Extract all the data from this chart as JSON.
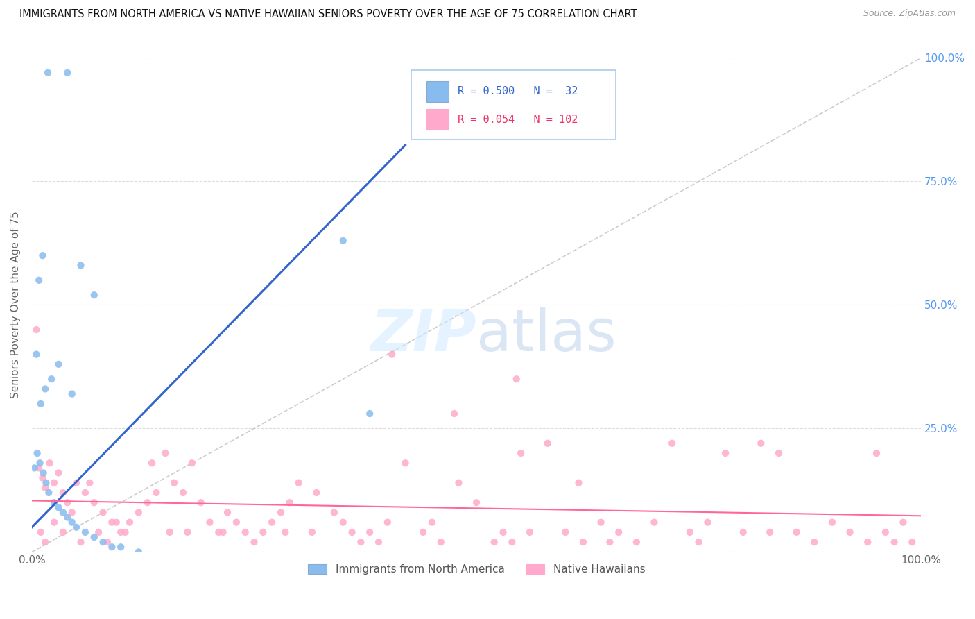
{
  "title": "IMMIGRANTS FROM NORTH AMERICA VS NATIVE HAWAIIAN SENIORS POVERTY OVER THE AGE OF 75 CORRELATION CHART",
  "source": "Source: ZipAtlas.com",
  "ylabel": "Seniors Poverty Over the Age of 75",
  "watermark": "ZIPatlas",
  "blue_color": "#88BBEE",
  "pink_color": "#FFAACC",
  "line_blue": "#3366CC",
  "line_pink": "#FF6699",
  "diag_color": "#CCCCCC",
  "blue_R": 0.5,
  "blue_N": 32,
  "pink_R": 0.054,
  "pink_N": 102,
  "blue_x": [
    0.018,
    0.04,
    0.012,
    0.008,
    0.005,
    0.022,
    0.015,
    0.01,
    0.055,
    0.07,
    0.03,
    0.045,
    0.35,
    0.38,
    0.003,
    0.006,
    0.009,
    0.013,
    0.016,
    0.019,
    0.025,
    0.03,
    0.035,
    0.04,
    0.045,
    0.05,
    0.06,
    0.07,
    0.08,
    0.09,
    0.1,
    0.12
  ],
  "blue_y": [
    0.97,
    0.97,
    0.6,
    0.55,
    0.4,
    0.35,
    0.33,
    0.3,
    0.58,
    0.52,
    0.38,
    0.32,
    0.63,
    0.28,
    0.17,
    0.2,
    0.18,
    0.16,
    0.14,
    0.12,
    0.1,
    0.09,
    0.08,
    0.07,
    0.06,
    0.05,
    0.04,
    0.03,
    0.02,
    0.01,
    0.01,
    0.0
  ],
  "pink_x": [
    0.005,
    0.008,
    0.012,
    0.015,
    0.02,
    0.025,
    0.03,
    0.035,
    0.04,
    0.045,
    0.05,
    0.06,
    0.07,
    0.08,
    0.09,
    0.1,
    0.11,
    0.12,
    0.13,
    0.14,
    0.15,
    0.16,
    0.17,
    0.18,
    0.19,
    0.2,
    0.21,
    0.22,
    0.23,
    0.24,
    0.25,
    0.26,
    0.27,
    0.28,
    0.29,
    0.3,
    0.32,
    0.34,
    0.35,
    0.36,
    0.37,
    0.38,
    0.39,
    0.4,
    0.42,
    0.44,
    0.45,
    0.46,
    0.48,
    0.5,
    0.52,
    0.53,
    0.54,
    0.55,
    0.56,
    0.58,
    0.6,
    0.62,
    0.64,
    0.65,
    0.66,
    0.68,
    0.7,
    0.72,
    0.74,
    0.75,
    0.76,
    0.78,
    0.8,
    0.82,
    0.83,
    0.84,
    0.86,
    0.88,
    0.9,
    0.92,
    0.94,
    0.95,
    0.96,
    0.97,
    0.98,
    0.99,
    0.01,
    0.015,
    0.025,
    0.035,
    0.055,
    0.065,
    0.075,
    0.085,
    0.095,
    0.105,
    0.135,
    0.155,
    0.175,
    0.215,
    0.285,
    0.315,
    0.405,
    0.475,
    0.545,
    0.615
  ],
  "pink_y": [
    0.45,
    0.17,
    0.15,
    0.13,
    0.18,
    0.14,
    0.16,
    0.12,
    0.1,
    0.08,
    0.14,
    0.12,
    0.1,
    0.08,
    0.06,
    0.04,
    0.06,
    0.08,
    0.1,
    0.12,
    0.2,
    0.14,
    0.12,
    0.18,
    0.1,
    0.06,
    0.04,
    0.08,
    0.06,
    0.04,
    0.02,
    0.04,
    0.06,
    0.08,
    0.1,
    0.14,
    0.12,
    0.08,
    0.06,
    0.04,
    0.02,
    0.04,
    0.02,
    0.06,
    0.18,
    0.04,
    0.06,
    0.02,
    0.14,
    0.1,
    0.02,
    0.04,
    0.02,
    0.2,
    0.04,
    0.22,
    0.04,
    0.02,
    0.06,
    0.02,
    0.04,
    0.02,
    0.06,
    0.22,
    0.04,
    0.02,
    0.06,
    0.2,
    0.04,
    0.22,
    0.04,
    0.2,
    0.04,
    0.02,
    0.06,
    0.04,
    0.02,
    0.2,
    0.04,
    0.02,
    0.06,
    0.02,
    0.04,
    0.02,
    0.06,
    0.04,
    0.02,
    0.14,
    0.04,
    0.02,
    0.06,
    0.04,
    0.18,
    0.04,
    0.04,
    0.04,
    0.04,
    0.04,
    0.4,
    0.28,
    0.35,
    0.14
  ]
}
